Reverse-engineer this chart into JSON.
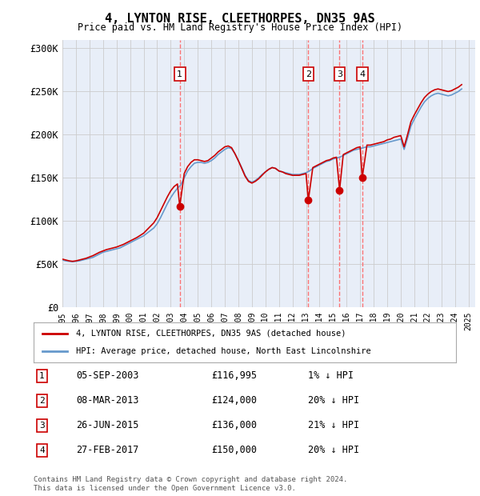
{
  "title": "4, LYNTON RISE, CLEETHORPES, DN35 9AS",
  "subtitle": "Price paid vs. HM Land Registry's House Price Index (HPI)",
  "ylabel_ticks": [
    "£0",
    "£50K",
    "£100K",
    "£150K",
    "£200K",
    "£250K",
    "£300K"
  ],
  "ytick_vals": [
    0,
    50000,
    100000,
    150000,
    200000,
    250000,
    300000
  ],
  "ylim": [
    0,
    310000
  ],
  "xlim_start": 1995.0,
  "xlim_end": 2025.5,
  "background_color": "#f0f4ff",
  "plot_bg": "#e8eef8",
  "legend_label_red": "4, LYNTON RISE, CLEETHORPES, DN35 9AS (detached house)",
  "legend_label_blue": "HPI: Average price, detached house, North East Lincolnshire",
  "sales": [
    {
      "num": 1,
      "date": "05-SEP-2003",
      "year": 2003.67,
      "price": 116995,
      "pct": "1%",
      "dir": "↓"
    },
    {
      "num": 2,
      "date": "08-MAR-2013",
      "year": 2013.17,
      "price": 124000,
      "pct": "20%",
      "dir": "↓"
    },
    {
      "num": 3,
      "date": "26-JUN-2015",
      "year": 2015.48,
      "price": 136000,
      "pct": "21%",
      "dir": "↓"
    },
    {
      "num": 4,
      "date": "27-FEB-2017",
      "year": 2017.15,
      "price": 150000,
      "pct": "20%",
      "dir": "↓"
    }
  ],
  "hpi_data": {
    "years": [
      1995.0,
      1995.25,
      1995.5,
      1995.75,
      1996.0,
      1996.25,
      1996.5,
      1996.75,
      1997.0,
      1997.25,
      1997.5,
      1997.75,
      1998.0,
      1998.25,
      1998.5,
      1998.75,
      1999.0,
      1999.25,
      1999.5,
      1999.75,
      2000.0,
      2000.25,
      2000.5,
      2000.75,
      2001.0,
      2001.25,
      2001.5,
      2001.75,
      2002.0,
      2002.25,
      2002.5,
      2002.75,
      2003.0,
      2003.25,
      2003.5,
      2003.75,
      2004.0,
      2004.25,
      2004.5,
      2004.75,
      2005.0,
      2005.25,
      2005.5,
      2005.75,
      2006.0,
      2006.25,
      2006.5,
      2006.75,
      2007.0,
      2007.25,
      2007.5,
      2007.75,
      2008.0,
      2008.25,
      2008.5,
      2008.75,
      2009.0,
      2009.25,
      2009.5,
      2009.75,
      2010.0,
      2010.25,
      2010.5,
      2010.75,
      2011.0,
      2011.25,
      2011.5,
      2011.75,
      2012.0,
      2012.25,
      2012.5,
      2012.75,
      2013.0,
      2013.25,
      2013.5,
      2013.75,
      2014.0,
      2014.25,
      2014.5,
      2014.75,
      2015.0,
      2015.25,
      2015.5,
      2015.75,
      2016.0,
      2016.25,
      2016.5,
      2016.75,
      2017.0,
      2017.25,
      2017.5,
      2017.75,
      2018.0,
      2018.25,
      2018.5,
      2018.75,
      2019.0,
      2019.25,
      2019.5,
      2019.75,
      2020.0,
      2020.25,
      2020.5,
      2020.75,
      2021.0,
      2021.25,
      2021.5,
      2021.75,
      2022.0,
      2022.25,
      2022.5,
      2022.75,
      2023.0,
      2023.25,
      2023.5,
      2023.75,
      2024.0,
      2024.25,
      2024.5
    ],
    "values": [
      55000,
      54000,
      53500,
      53000,
      53500,
      54000,
      55000,
      56000,
      57000,
      58000,
      60000,
      62000,
      64000,
      65000,
      66000,
      67000,
      68000,
      69000,
      71000,
      73000,
      75000,
      77000,
      79000,
      81000,
      83000,
      86000,
      89000,
      92000,
      97000,
      104000,
      112000,
      120000,
      127000,
      133000,
      138000,
      142000,
      150000,
      158000,
      163000,
      167000,
      168000,
      168000,
      167000,
      168000,
      170000,
      173000,
      177000,
      180000,
      183000,
      185000,
      184000,
      178000,
      170000,
      162000,
      153000,
      147000,
      145000,
      147000,
      150000,
      154000,
      157000,
      160000,
      162000,
      161000,
      158000,
      157000,
      156000,
      155000,
      154000,
      154000,
      154000,
      155000,
      156000,
      158000,
      161000,
      163000,
      165000,
      167000,
      169000,
      170000,
      172000,
      173000,
      174000,
      176000,
      178000,
      180000,
      182000,
      183000,
      184000,
      185000,
      186000,
      186000,
      187000,
      188000,
      189000,
      190000,
      191000,
      192000,
      193000,
      194000,
      195000,
      183000,
      196000,
      210000,
      218000,
      225000,
      232000,
      238000,
      242000,
      245000,
      247000,
      248000,
      247000,
      246000,
      245000,
      246000,
      248000,
      250000,
      253000
    ]
  },
  "property_data": {
    "years": [
      1995.0,
      1995.25,
      1995.5,
      1995.75,
      1996.0,
      1996.25,
      1996.5,
      1996.75,
      1997.0,
      1997.25,
      1997.5,
      1997.75,
      1998.0,
      1998.25,
      1998.5,
      1998.75,
      1999.0,
      1999.25,
      1999.5,
      1999.75,
      2000.0,
      2000.25,
      2000.5,
      2000.75,
      2001.0,
      2001.25,
      2001.5,
      2001.75,
      2002.0,
      2002.25,
      2002.5,
      2002.75,
      2003.0,
      2003.25,
      2003.5,
      2003.67,
      2004.0,
      2004.25,
      2004.5,
      2004.75,
      2005.0,
      2005.25,
      2005.5,
      2005.75,
      2006.0,
      2006.25,
      2006.5,
      2006.75,
      2007.0,
      2007.25,
      2007.5,
      2007.75,
      2008.0,
      2008.25,
      2008.5,
      2008.75,
      2009.0,
      2009.25,
      2009.5,
      2009.75,
      2010.0,
      2010.25,
      2010.5,
      2010.75,
      2011.0,
      2011.25,
      2011.5,
      2011.75,
      2012.0,
      2012.25,
      2012.5,
      2012.75,
      2013.0,
      2013.17,
      2013.5,
      2013.75,
      2014.0,
      2014.25,
      2014.5,
      2014.75,
      2015.0,
      2015.25,
      2015.48,
      2015.75,
      2016.0,
      2016.25,
      2016.5,
      2016.75,
      2017.0,
      2017.15,
      2017.5,
      2017.75,
      2018.0,
      2018.25,
      2018.5,
      2018.75,
      2019.0,
      2019.25,
      2019.5,
      2019.75,
      2020.0,
      2020.25,
      2020.5,
      2020.75,
      2021.0,
      2021.25,
      2021.5,
      2021.75,
      2022.0,
      2022.25,
      2022.5,
      2022.75,
      2023.0,
      2023.25,
      2023.5,
      2023.75,
      2024.0,
      2024.25,
      2024.5
    ],
    "values": [
      56000,
      55000,
      54000,
      53500,
      54000,
      55000,
      56000,
      57000,
      58500,
      60000,
      62000,
      64000,
      65500,
      67000,
      68000,
      69000,
      70000,
      71500,
      73000,
      75000,
      77000,
      79000,
      81000,
      83500,
      86000,
      90000,
      94000,
      98000,
      104000,
      112000,
      120000,
      128000,
      135000,
      140000,
      143000,
      116995,
      155000,
      163000,
      168000,
      171000,
      171000,
      170000,
      169000,
      170000,
      173000,
      176000,
      180000,
      183000,
      186000,
      187000,
      185000,
      178000,
      170000,
      161000,
      152000,
      146000,
      144000,
      146000,
      149000,
      153000,
      157000,
      160000,
      162000,
      161000,
      158000,
      157000,
      155000,
      154000,
      153000,
      153000,
      153000,
      154000,
      155000,
      124000,
      162000,
      164000,
      166000,
      168000,
      170000,
      171000,
      173000,
      174000,
      136000,
      177000,
      179000,
      181000,
      183000,
      185000,
      186000,
      150000,
      188000,
      188000,
      189000,
      190000,
      191000,
      192000,
      194000,
      195000,
      197000,
      198000,
      199000,
      186000,
      200000,
      215000,
      223000,
      230000,
      237000,
      243000,
      247000,
      250000,
      252000,
      253000,
      252000,
      251000,
      250000,
      251000,
      253000,
      255000,
      258000
    ]
  },
  "footer": "Contains HM Land Registry data © Crown copyright and database right 2024.\nThis data is licensed under the Open Government Licence v3.0.",
  "red_color": "#cc0000",
  "blue_color": "#6699cc",
  "marker_box_color": "#cc0000",
  "vline_color": "#ff6666",
  "grid_color": "#cccccc"
}
